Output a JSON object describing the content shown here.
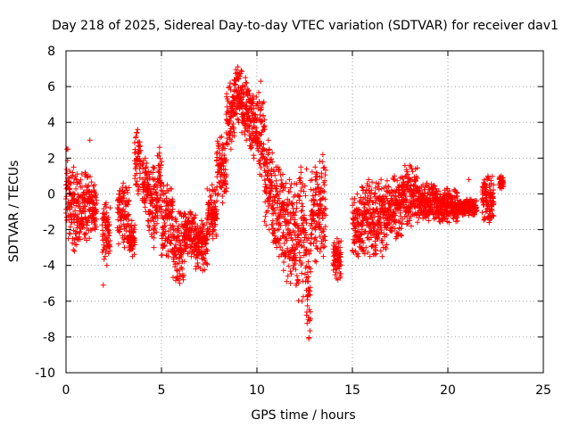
{
  "chart_data": {
    "type": "scatter",
    "title": "Day 218 of 2025, Sidereal Day-to-day VTEC variation (SDTVAR) for receiver dav1",
    "xlabel": "GPS time / hours",
    "ylabel": "SDTVAR / TECUs",
    "xlim": [
      0,
      25
    ],
    "ylim": [
      -10,
      8
    ],
    "xticks": [
      0,
      5,
      10,
      15,
      20,
      25
    ],
    "yticks": [
      -10,
      -8,
      -6,
      -4,
      -2,
      0,
      2,
      4,
      6,
      8
    ],
    "grid": true,
    "marker": "+",
    "color": "#ff0000",
    "series": [
      {
        "name": "SDTVAR",
        "segments": [
          {
            "t0": 0.0,
            "t1": 0.2,
            "lo": -2.5,
            "hi": 2.5
          },
          {
            "t0": 0.2,
            "t1": 0.6,
            "lo": -3.2,
            "hi": 1.5
          },
          {
            "t0": 0.6,
            "t1": 1.4,
            "lo": -2.6,
            "hi": 1.2
          },
          {
            "t0": 1.4,
            "t1": 1.6,
            "lo": -2.0,
            "hi": 0.5
          },
          {
            "t0": 1.9,
            "t1": 2.3,
            "lo": -4.0,
            "hi": -0.5
          },
          {
            "t0": 2.7,
            "t1": 3.3,
            "lo": -3.0,
            "hi": 0.6
          },
          {
            "t0": 3.3,
            "t1": 3.6,
            "lo": -3.5,
            "hi": -1.5
          },
          {
            "t0": 3.6,
            "t1": 3.9,
            "lo": 0.0,
            "hi": 3.6
          },
          {
            "t0": 4.0,
            "t1": 4.3,
            "lo": -1.0,
            "hi": 2.0
          },
          {
            "t0": 4.3,
            "t1": 4.8,
            "lo": -3.0,
            "hi": 1.5
          },
          {
            "t0": 4.8,
            "t1": 5.0,
            "lo": -1.0,
            "hi": 2.6
          },
          {
            "t0": 5.0,
            "t1": 5.6,
            "lo": -3.5,
            "hi": 0.5
          },
          {
            "t0": 5.6,
            "t1": 6.2,
            "lo": -5.0,
            "hi": -1.0
          },
          {
            "t0": 6.2,
            "t1": 6.8,
            "lo": -3.5,
            "hi": -1.0
          },
          {
            "t0": 6.8,
            "t1": 7.4,
            "lo": -4.3,
            "hi": -1.5
          },
          {
            "t0": 7.4,
            "t1": 7.9,
            "lo": -2.5,
            "hi": 0.5
          },
          {
            "t0": 7.9,
            "t1": 8.4,
            "lo": -0.5,
            "hi": 3.2
          },
          {
            "t0": 8.4,
            "t1": 8.8,
            "lo": 2.5,
            "hi": 6.2
          },
          {
            "t0": 8.8,
            "t1": 9.2,
            "lo": 4.0,
            "hi": 7.1
          },
          {
            "t0": 9.2,
            "t1": 9.6,
            "lo": 3.0,
            "hi": 6.5
          },
          {
            "t0": 9.6,
            "t1": 10.0,
            "lo": 2.0,
            "hi": 5.5
          },
          {
            "t0": 10.0,
            "t1": 10.4,
            "lo": 1.0,
            "hi": 6.3
          },
          {
            "t0": 10.4,
            "t1": 10.8,
            "lo": -2.0,
            "hi": 3.0
          },
          {
            "t0": 10.8,
            "t1": 11.4,
            "lo": -3.5,
            "hi": 1.5
          },
          {
            "t0": 11.4,
            "t1": 12.0,
            "lo": -5.0,
            "hi": 0.8
          },
          {
            "t0": 12.0,
            "t1": 12.6,
            "lo": -6.0,
            "hi": 1.5
          },
          {
            "t0": 12.6,
            "t1": 12.8,
            "lo": -8.1,
            "hi": -2.5
          },
          {
            "t0": 12.8,
            "t1": 13.3,
            "lo": -3.8,
            "hi": 1.5
          },
          {
            "t0": 13.3,
            "t1": 13.6,
            "lo": -3.5,
            "hi": 2.2
          },
          {
            "t0": 14.0,
            "t1": 14.4,
            "lo": -4.8,
            "hi": -2.5
          },
          {
            "t0": 15.0,
            "t1": 15.5,
            "lo": -3.5,
            "hi": 0.0
          },
          {
            "t0": 15.5,
            "t1": 16.2,
            "lo": -3.5,
            "hi": 0.8
          },
          {
            "t0": 16.2,
            "t1": 16.8,
            "lo": -3.5,
            "hi": 0.8
          },
          {
            "t0": 16.8,
            "t1": 17.6,
            "lo": -2.5,
            "hi": 1.0
          },
          {
            "t0": 17.6,
            "t1": 18.4,
            "lo": -1.8,
            "hi": 1.6
          },
          {
            "t0": 18.4,
            "t1": 19.4,
            "lo": -1.5,
            "hi": 0.6
          },
          {
            "t0": 19.4,
            "t1": 20.5,
            "lo": -1.6,
            "hi": 0.3
          },
          {
            "t0": 20.5,
            "t1": 21.5,
            "lo": -1.2,
            "hi": -0.3
          },
          {
            "t0": 21.8,
            "t1": 22.4,
            "lo": -1.6,
            "hi": 1.0
          },
          {
            "t0": 22.7,
            "t1": 22.9,
            "lo": 0.3,
            "hi": 1.0
          }
        ],
        "isolated": [
          [
            1.25,
            3.0
          ],
          [
            1.95,
            -5.1
          ],
          [
            21.1,
            0.8
          ],
          [
            0.05,
            2.5
          ],
          [
            11.0,
            1.5
          ]
        ]
      }
    ]
  }
}
